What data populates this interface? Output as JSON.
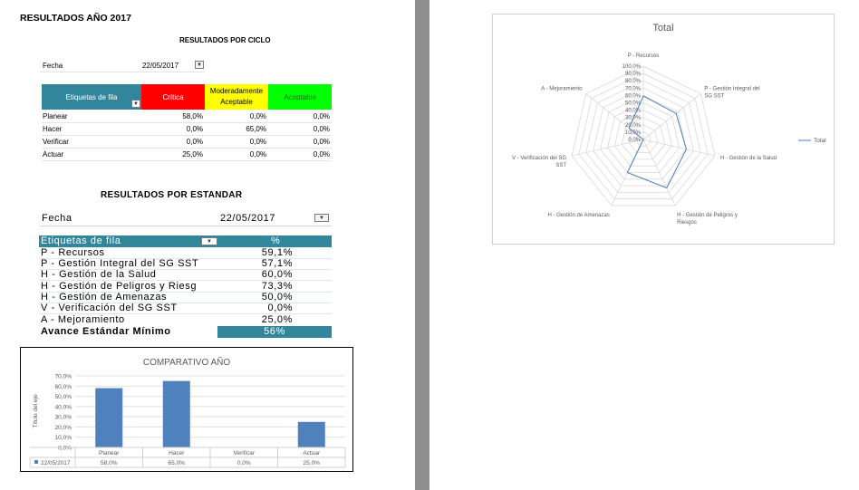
{
  "report_title": "RESULTADOS AÑO 2017",
  "cycle_section": {
    "title": "RESULTADOS POR CICLO",
    "fecha_label": "Fecha",
    "fecha_value": "22/05/2017",
    "header": {
      "row_labels": "Etiquetas de fila",
      "critica": "Crítica",
      "moderada": "Moderadamente Aceptable",
      "aceptable": "Aceptable"
    },
    "rows": [
      {
        "label": "Planear",
        "critica": "58,0%",
        "moderada": "0,0%",
        "aceptable": "0,0%"
      },
      {
        "label": "Hacer",
        "critica": "0,0%",
        "moderada": "65,0%",
        "aceptable": "0,0%"
      },
      {
        "label": "Verificar",
        "critica": "0,0%",
        "moderada": "0,0%",
        "aceptable": "0,0%"
      },
      {
        "label": "Actuar",
        "critica": "25,0%",
        "moderada": "0,0%",
        "aceptable": "0,0%"
      }
    ]
  },
  "standard_section": {
    "title": "RESULTADOS POR ESTANDAR",
    "fecha_label": "Fecha",
    "fecha_value": "22/05/2017",
    "header_label": "Etiquetas de fila",
    "header_pct": "%",
    "rows": [
      {
        "label": "P - Recursos",
        "value": "59,1%"
      },
      {
        "label": "P - Gestión Integral del SG SST",
        "value": "57,1%"
      },
      {
        "label": "H - Gestión de la Salud",
        "value": "60,0%"
      },
      {
        "label": "H - Gestión de Peligros y Riesg",
        "value": "73,3%"
      },
      {
        "label": "H - Gestión de Amenazas",
        "value": "50,0%"
      },
      {
        "label": "V - Verificación del SG SST",
        "value": "0,0%"
      },
      {
        "label": "A - Mejoramiento",
        "value": "25,0%"
      }
    ],
    "total_label": "Avance Estándar Mínimo",
    "total_value": "56%"
  },
  "colors": {
    "teal": "#31869b",
    "red": "#ff0000",
    "yellow": "#ffff00",
    "green": "#00ff00",
    "bar": "#4f81bd",
    "radar_line": "#4a7ebb"
  },
  "chart_data": [
    {
      "type": "bar",
      "title": "COMPARATIVO AÑO",
      "ylabel": "Título del eje",
      "categories": [
        "Planear",
        "Hacer",
        "Verificar",
        "Actuar"
      ],
      "series": [
        {
          "name": "22/05/2017",
          "values": [
            58.0,
            65.0,
            0.0,
            25.0
          ]
        }
      ],
      "data_table": [
        "58,0%",
        "65,0%",
        "0,0%",
        "25,0%"
      ],
      "y_ticks": [
        "0,0%",
        "10,0%",
        "20,0%",
        "30,0%",
        "40,0%",
        "50,0%",
        "60,0%",
        "70,0%"
      ],
      "ylim": [
        0,
        70
      ],
      "grid": true
    },
    {
      "type": "radar",
      "title": "Total",
      "categories": [
        "P - Recursos",
        "P - Gestión Integral del SG SST",
        "H - Gestión de la Salud",
        "H - Gestión de Peligros y Riesgos",
        "H - Gestión de Amenazas",
        "V - Verificación del SG SST",
        "A - Mejoramiento"
      ],
      "series": [
        {
          "name": "Total",
          "values": [
            59.1,
            57.1,
            60.0,
            73.3,
            50.0,
            0.0,
            25.0
          ]
        }
      ],
      "r_ticks": [
        "0,0%",
        "10,0%",
        "20,0%",
        "30,0%",
        "40,0%",
        "50,0%",
        "60,0%",
        "70,0%",
        "80,0%",
        "90,0%",
        "100,0%"
      ],
      "rlim": [
        0,
        100
      ],
      "legend": "right"
    }
  ]
}
